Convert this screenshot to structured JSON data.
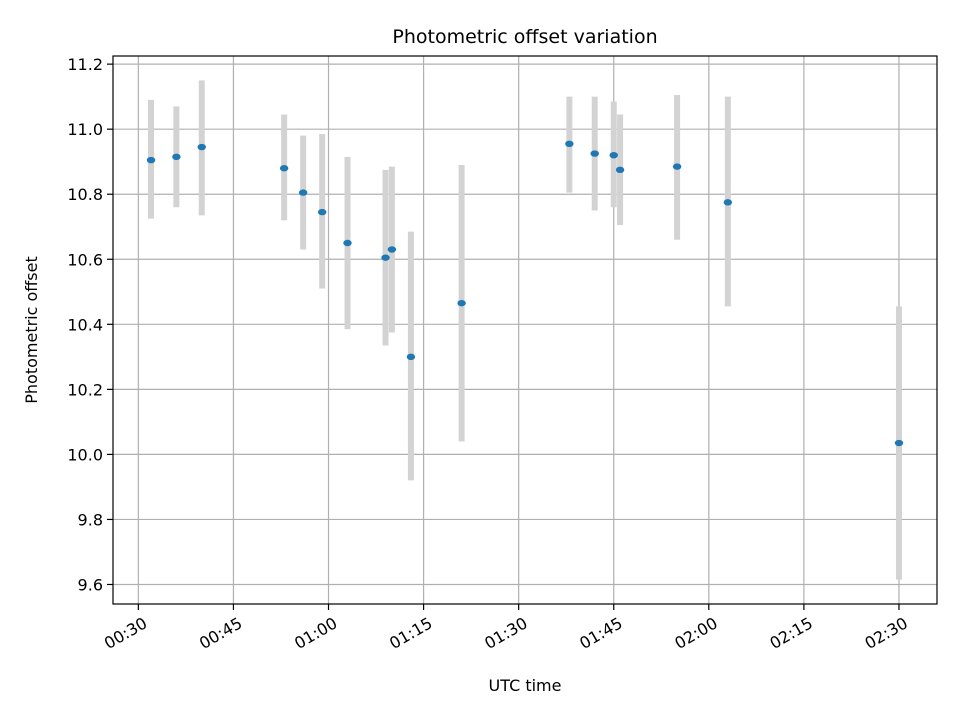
{
  "chart_data": {
    "type": "scatter",
    "title": "Photometric offset variation",
    "xlabel": "UTC time",
    "ylabel": "Photometric offset",
    "x_ticks": [
      "00:30",
      "00:45",
      "01:00",
      "01:15",
      "01:30",
      "01:45",
      "02:00",
      "02:15",
      "02:30"
    ],
    "y_ticks": [
      "9.6",
      "9.8",
      "10.0",
      "10.2",
      "10.4",
      "10.6",
      "10.8",
      "11.0",
      "11.2"
    ],
    "xlim": [
      "00:26",
      "02:36"
    ],
    "ylim": [
      9.54,
      11.225
    ],
    "grid": true,
    "marker_color": "#1f77b4",
    "errorbar_color": "#d3d3d3",
    "points": [
      {
        "time": "00:32",
        "y": 10.905,
        "lo": 10.725,
        "hi": 11.09
      },
      {
        "time": "00:36",
        "y": 10.915,
        "lo": 10.76,
        "hi": 11.07
      },
      {
        "time": "00:40",
        "y": 10.945,
        "lo": 10.735,
        "hi": 11.15
      },
      {
        "time": "00:53",
        "y": 10.88,
        "lo": 10.72,
        "hi": 11.045
      },
      {
        "time": "00:56",
        "y": 10.805,
        "lo": 10.63,
        "hi": 10.98
      },
      {
        "time": "00:59",
        "y": 10.745,
        "lo": 10.51,
        "hi": 10.985
      },
      {
        "time": "01:03",
        "y": 10.65,
        "lo": 10.385,
        "hi": 10.915
      },
      {
        "time": "01:09",
        "y": 10.605,
        "lo": 10.335,
        "hi": 10.875
      },
      {
        "time": "01:10",
        "y": 10.63,
        "lo": 10.375,
        "hi": 10.885
      },
      {
        "time": "01:13",
        "y": 10.3,
        "lo": 9.92,
        "hi": 10.685
      },
      {
        "time": "01:21",
        "y": 10.465,
        "lo": 10.04,
        "hi": 10.89
      },
      {
        "time": "01:38",
        "y": 10.955,
        "lo": 10.805,
        "hi": 11.1
      },
      {
        "time": "01:42",
        "y": 10.925,
        "lo": 10.75,
        "hi": 11.1
      },
      {
        "time": "01:45",
        "y": 10.92,
        "lo": 10.76,
        "hi": 11.085
      },
      {
        "time": "01:46",
        "y": 10.875,
        "lo": 10.705,
        "hi": 11.045
      },
      {
        "time": "01:55",
        "y": 10.885,
        "lo": 10.66,
        "hi": 11.105
      },
      {
        "time": "02:03",
        "y": 10.775,
        "lo": 10.455,
        "hi": 11.1
      },
      {
        "time": "02:30",
        "y": 10.035,
        "lo": 9.615,
        "hi": 10.455
      }
    ]
  }
}
